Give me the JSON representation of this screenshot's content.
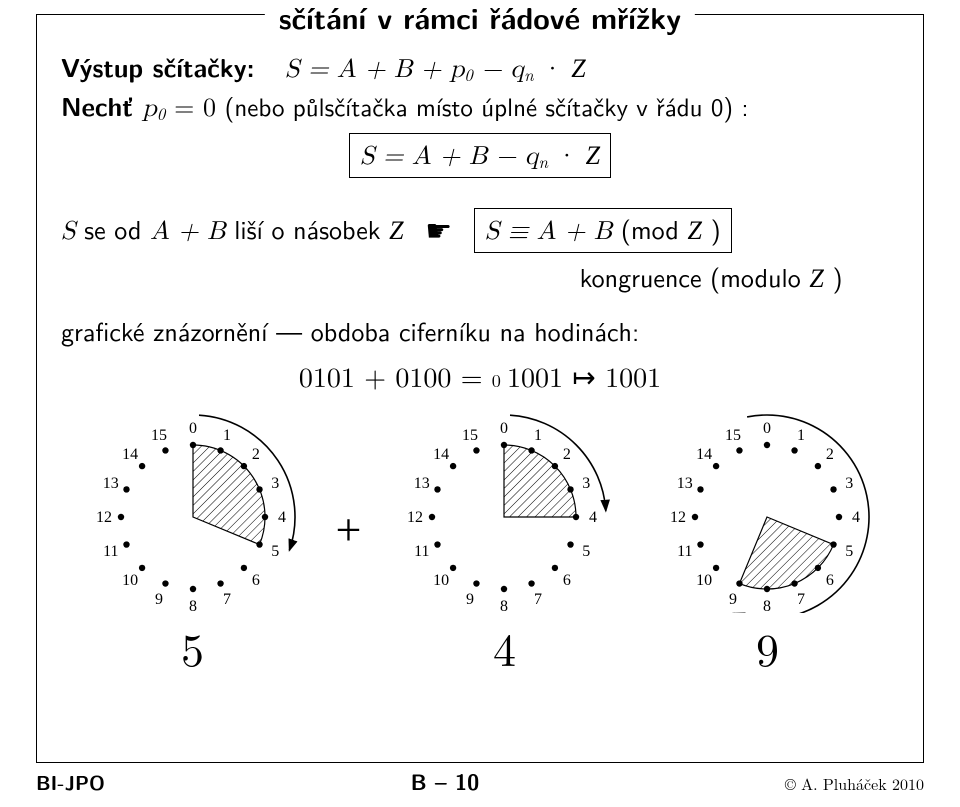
{
  "title": "sčítání v rámci řádové mřížky",
  "line_output_label": "Výstup sčítačky:",
  "line_output_eq": "S = A + B + p",
  "line_output_sub": "0",
  "line_output_tail": " − q",
  "line_output_sub2": "n",
  "line_output_dot": " · ",
  "line_output_Z": "Z",
  "let_label": "Nechť ",
  "p0": "p",
  "p0_sub": "0",
  "eq0": " = 0 ",
  "paren": "(nebo půlsčítačka místo úplné sčítačky v řádu 0) :",
  "boxed1_pre": "S = A + B − q",
  "boxed1_sub": "n",
  "boxed1_dot": " · ",
  "boxed1_Z": "Z",
  "diff_text_a": "S",
  "diff_text_b": " se od ",
  "diff_text_c": "A + B",
  "diff_text_d": " liší o násobek ",
  "diff_text_Z": "Z",
  "pointer": "☛",
  "boxed2_a": "S ≡ A + B",
  "boxed2_b": "   (mod ",
  "boxed2_Z": "Z",
  "boxed2_c": " )",
  "kong_text": "kongruence (modulo ",
  "kong_Z": "Z",
  "kong_tail": " )",
  "graf_text": "grafické znázornění — obdoba ciferníku na hodinách:",
  "bin_a": "0101",
  "bin_plus": " + ",
  "bin_b": "0100",
  "bin_eq": " = ",
  "bin_carry_sub": "0 ",
  "bin_res": "1001",
  "bin_map": " ↦ ",
  "bin_final": "1001",
  "dials": {
    "radius": 72,
    "dot_r": 3.2,
    "label_font": 16,
    "hatch_spacing": 6,
    "items": [
      {
        "value": 5,
        "arc_from": 0,
        "arc_to": 5,
        "wedge_from": 0,
        "wedge_to": 5,
        "arc_reverse_tick": false
      },
      {
        "value": 4,
        "arc_from": 0,
        "arc_to": 4,
        "wedge_from": 0,
        "wedge_to": 4,
        "arc_reverse_tick": false
      },
      {
        "value": 9,
        "arc_from": 0,
        "arc_to": 9,
        "wedge_from": 5,
        "wedge_to": 9,
        "arc_reverse_tick": true
      }
    ],
    "labels": [
      "5",
      "+",
      "4",
      "",
      "9"
    ]
  },
  "footer": {
    "left": "BI-JPO",
    "mid": "B – 10",
    "right": "©  A. Pluháček 2010"
  },
  "colors": {
    "fg": "#000000",
    "bg": "#ffffff"
  }
}
